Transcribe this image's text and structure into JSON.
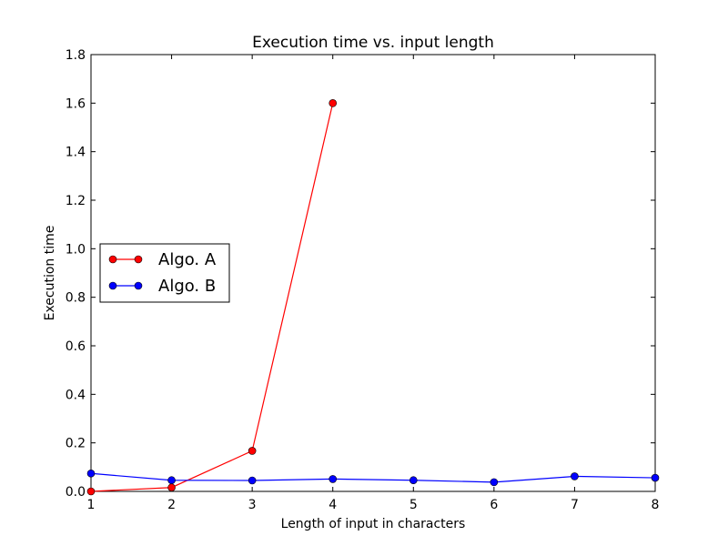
{
  "chart_data": {
    "type": "line",
    "title": "Execution time vs. input length",
    "xlabel": "Length of input in characters",
    "ylabel": "Execution time",
    "xlim": [
      1,
      8
    ],
    "ylim": [
      0.0,
      1.8
    ],
    "xticks": [
      1,
      2,
      3,
      4,
      5,
      6,
      7,
      8
    ],
    "yticks": [
      0.0,
      0.2,
      0.4,
      0.6,
      0.8,
      1.0,
      1.2,
      1.4,
      1.6,
      1.8
    ],
    "xtick_labels": [
      "1",
      "2",
      "3",
      "4",
      "5",
      "6",
      "7",
      "8"
    ],
    "ytick_labels": [
      "0.0",
      "0.2",
      "0.4",
      "0.6",
      "0.8",
      "1.0",
      "1.2",
      "1.4",
      "1.6",
      "1.8"
    ],
    "grid": false,
    "legend_position": "center-left",
    "series": [
      {
        "name": "Algo. A",
        "color": "#ff0000",
        "marker": "circle",
        "x": [
          1,
          2,
          3,
          4
        ],
        "y": [
          0.0,
          0.016,
          0.167,
          1.6
        ]
      },
      {
        "name": "Algo. B",
        "color": "#0000ff",
        "marker": "circle",
        "x": [
          1,
          2,
          3,
          4,
          5,
          6,
          7,
          8
        ],
        "y": [
          0.074,
          0.046,
          0.045,
          0.051,
          0.046,
          0.038,
          0.062,
          0.056
        ]
      }
    ]
  }
}
